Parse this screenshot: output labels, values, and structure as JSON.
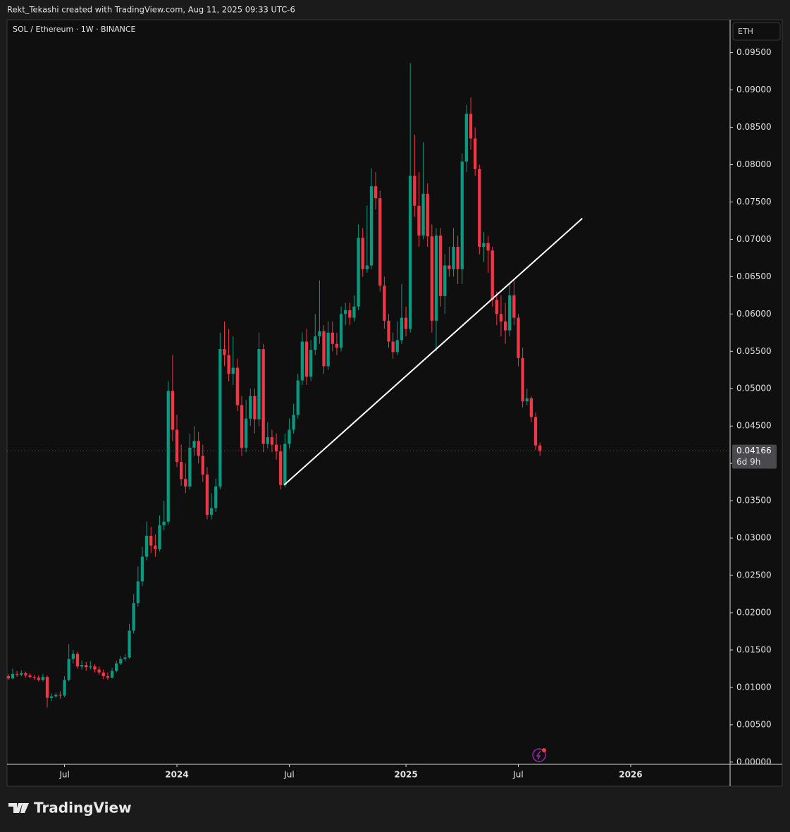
{
  "header": {
    "text": "Rekt_Tekashi created with TradingView.com, Aug 11, 2025 09:33 UTC-6"
  },
  "chart_data": {
    "type": "candlestick",
    "symbol": "SOL / Ethereum · 1W · BINANCE",
    "currency": "ETH",
    "colors": {
      "up": "#089981",
      "down": "#f23645"
    },
    "ohlc": [
      [
        0.0115,
        0.0118,
        0.011,
        0.0112
      ],
      [
        0.0112,
        0.0125,
        0.0111,
        0.0118
      ],
      [
        0.0118,
        0.0122,
        0.0114,
        0.0117
      ],
      [
        0.0117,
        0.0123,
        0.0115,
        0.0119
      ],
      [
        0.0119,
        0.0121,
        0.0113,
        0.0116
      ],
      [
        0.0116,
        0.0119,
        0.0112,
        0.0114
      ],
      [
        0.0114,
        0.0117,
        0.011,
        0.0113
      ],
      [
        0.0113,
        0.0116,
        0.0108,
        0.011
      ],
      [
        0.011,
        0.0118,
        0.0108,
        0.0114
      ],
      [
        0.0114,
        0.0116,
        0.0073,
        0.0086
      ],
      [
        0.0086,
        0.0092,
        0.0082,
        0.0088
      ],
      [
        0.0088,
        0.0093,
        0.0086,
        0.009
      ],
      [
        0.009,
        0.0095,
        0.0085,
        0.0089
      ],
      [
        0.0089,
        0.0115,
        0.0087,
        0.011
      ],
      [
        0.011,
        0.0158,
        0.0108,
        0.0138
      ],
      [
        0.0138,
        0.015,
        0.0132,
        0.0145
      ],
      [
        0.0145,
        0.0148,
        0.0125,
        0.0128
      ],
      [
        0.0128,
        0.0136,
        0.0124,
        0.013
      ],
      [
        0.013,
        0.0134,
        0.0122,
        0.0127
      ],
      [
        0.0127,
        0.0135,
        0.0124,
        0.0128
      ],
      [
        0.0128,
        0.0131,
        0.012,
        0.0124
      ],
      [
        0.0124,
        0.0128,
        0.0117,
        0.012
      ],
      [
        0.012,
        0.0124,
        0.0111,
        0.0115
      ],
      [
        0.0115,
        0.012,
        0.011,
        0.0113
      ],
      [
        0.0113,
        0.0126,
        0.0112,
        0.0122
      ],
      [
        0.0122,
        0.0136,
        0.012,
        0.0132
      ],
      [
        0.0132,
        0.0142,
        0.013,
        0.0138
      ],
      [
        0.0138,
        0.0145,
        0.0135,
        0.014
      ],
      [
        0.014,
        0.0185,
        0.0138,
        0.0176
      ],
      [
        0.0176,
        0.0225,
        0.0172,
        0.0213
      ],
      [
        0.0213,
        0.0262,
        0.0208,
        0.0242
      ],
      [
        0.0242,
        0.0288,
        0.0236,
        0.0275
      ],
      [
        0.0275,
        0.0322,
        0.027,
        0.0303
      ],
      [
        0.0303,
        0.0315,
        0.028,
        0.029
      ],
      [
        0.029,
        0.0305,
        0.0275,
        0.0285
      ],
      [
        0.0285,
        0.033,
        0.0282,
        0.0317
      ],
      [
        0.0317,
        0.035,
        0.031,
        0.0322
      ],
      [
        0.0322,
        0.051,
        0.0318,
        0.0497
      ],
      [
        0.0497,
        0.0545,
        0.043,
        0.0445
      ],
      [
        0.0445,
        0.0465,
        0.0395,
        0.0402
      ],
      [
        0.0402,
        0.0425,
        0.037,
        0.0379
      ],
      [
        0.0379,
        0.04,
        0.036,
        0.0369
      ],
      [
        0.0369,
        0.044,
        0.0365,
        0.0421
      ],
      [
        0.0421,
        0.045,
        0.041,
        0.043
      ],
      [
        0.043,
        0.0442,
        0.04,
        0.041
      ],
      [
        0.041,
        0.0425,
        0.0375,
        0.0385
      ],
      [
        0.0385,
        0.0395,
        0.0325,
        0.0331
      ],
      [
        0.0331,
        0.036,
        0.0325,
        0.034
      ],
      [
        0.034,
        0.038,
        0.0335,
        0.0369
      ],
      [
        0.0369,
        0.0575,
        0.0365,
        0.0553
      ],
      [
        0.0553,
        0.059,
        0.053,
        0.0545
      ],
      [
        0.0545,
        0.058,
        0.051,
        0.052
      ],
      [
        0.052,
        0.057,
        0.0505,
        0.0528
      ],
      [
        0.0528,
        0.054,
        0.047,
        0.0478
      ],
      [
        0.0478,
        0.049,
        0.041,
        0.0421
      ],
      [
        0.0421,
        0.0485,
        0.0415,
        0.046
      ],
      [
        0.046,
        0.05,
        0.045,
        0.049
      ],
      [
        0.049,
        0.05,
        0.044,
        0.0459
      ],
      [
        0.0459,
        0.0575,
        0.045,
        0.0553
      ],
      [
        0.0553,
        0.056,
        0.0415,
        0.0426
      ],
      [
        0.0426,
        0.0455,
        0.042,
        0.0435
      ],
      [
        0.0435,
        0.0445,
        0.0415,
        0.0425
      ],
      [
        0.0425,
        0.044,
        0.0405,
        0.0416
      ],
      [
        0.0416,
        0.0425,
        0.0365,
        0.0371
      ],
      [
        0.0371,
        0.044,
        0.0368,
        0.0426
      ],
      [
        0.0426,
        0.046,
        0.042,
        0.0445
      ],
      [
        0.0445,
        0.048,
        0.044,
        0.0465
      ],
      [
        0.0465,
        0.052,
        0.046,
        0.0511
      ],
      [
        0.0511,
        0.0575,
        0.0505,
        0.0563
      ],
      [
        0.0563,
        0.058,
        0.0505,
        0.0516
      ],
      [
        0.0516,
        0.0565,
        0.051,
        0.0552
      ],
      [
        0.0552,
        0.06,
        0.0545,
        0.057
      ],
      [
        0.057,
        0.0645,
        0.056,
        0.0577
      ],
      [
        0.0577,
        0.0585,
        0.052,
        0.053
      ],
      [
        0.053,
        0.059,
        0.0525,
        0.0575
      ],
      [
        0.0575,
        0.059,
        0.055,
        0.056
      ],
      [
        0.056,
        0.0575,
        0.0545,
        0.0555
      ],
      [
        0.0555,
        0.061,
        0.055,
        0.06
      ],
      [
        0.06,
        0.0615,
        0.0585,
        0.0605
      ],
      [
        0.0605,
        0.0615,
        0.0585,
        0.0595
      ],
      [
        0.0595,
        0.0625,
        0.059,
        0.061
      ],
      [
        0.061,
        0.072,
        0.0605,
        0.0702
      ],
      [
        0.0702,
        0.0715,
        0.065,
        0.066
      ],
      [
        0.066,
        0.0745,
        0.0655,
        0.0665
      ],
      [
        0.0665,
        0.0795,
        0.066,
        0.0771
      ],
      [
        0.0771,
        0.079,
        0.074,
        0.0755
      ],
      [
        0.0755,
        0.0765,
        0.063,
        0.0638
      ],
      [
        0.0638,
        0.065,
        0.058,
        0.0591
      ],
      [
        0.0591,
        0.06,
        0.0555,
        0.0563
      ],
      [
        0.0563,
        0.0575,
        0.054,
        0.0549
      ],
      [
        0.0549,
        0.059,
        0.0545,
        0.0565
      ],
      [
        0.0565,
        0.064,
        0.056,
        0.0595
      ],
      [
        0.0595,
        0.061,
        0.057,
        0.058
      ],
      [
        0.058,
        0.0936,
        0.0575,
        0.0785
      ],
      [
        0.0785,
        0.084,
        0.073,
        0.0745
      ],
      [
        0.0745,
        0.079,
        0.069,
        0.0705
      ],
      [
        0.0705,
        0.083,
        0.07,
        0.0761
      ],
      [
        0.0761,
        0.0775,
        0.069,
        0.0704
      ],
      [
        0.0704,
        0.072,
        0.0575,
        0.0591
      ],
      [
        0.0591,
        0.0715,
        0.055,
        0.0705
      ],
      [
        0.0705,
        0.0715,
        0.061,
        0.0624
      ],
      [
        0.0624,
        0.068,
        0.06,
        0.0665
      ],
      [
        0.0665,
        0.069,
        0.065,
        0.066
      ],
      [
        0.066,
        0.0715,
        0.065,
        0.069
      ],
      [
        0.069,
        0.0705,
        0.064,
        0.066
      ],
      [
        0.066,
        0.0815,
        0.064,
        0.0804
      ],
      [
        0.0804,
        0.088,
        0.079,
        0.0868
      ],
      [
        0.0868,
        0.089,
        0.082,
        0.0835
      ],
      [
        0.0835,
        0.085,
        0.0785,
        0.0794
      ],
      [
        0.0794,
        0.08,
        0.068,
        0.069
      ],
      [
        0.069,
        0.071,
        0.067,
        0.0695
      ],
      [
        0.0695,
        0.0705,
        0.0655,
        0.0685
      ],
      [
        0.0685,
        0.069,
        0.061,
        0.0619
      ],
      [
        0.0619,
        0.063,
        0.0585,
        0.06
      ],
      [
        0.06,
        0.0625,
        0.057,
        0.059
      ],
      [
        0.059,
        0.0615,
        0.056,
        0.0578
      ],
      [
        0.0578,
        0.064,
        0.057,
        0.0625
      ],
      [
        0.0625,
        0.0645,
        0.0585,
        0.0595
      ],
      [
        0.0595,
        0.06,
        0.053,
        0.0541
      ],
      [
        0.0541,
        0.0555,
        0.0475,
        0.0483
      ],
      [
        0.0483,
        0.05,
        0.0478,
        0.0487
      ],
      [
        0.0487,
        0.049,
        0.0455,
        0.0462
      ],
      [
        0.0462,
        0.0468,
        0.0418,
        0.0424
      ],
      [
        0.0424,
        0.0428,
        0.041,
        0.04166
      ]
    ],
    "trendline": {
      "start": [
        63.8,
        0.0371
      ],
      "end": [
        132.8,
        0.0728
      ],
      "color": "#ffffff"
    },
    "last_price": 0.04166,
    "countdown": "6d 9h",
    "xlim": [
      -0.3,
      167
    ],
    "xticks": [
      {
        "value": 13,
        "label": "Jul"
      },
      {
        "value": 39,
        "label": "2024"
      },
      {
        "value": 65,
        "label": "Jul"
      },
      {
        "value": 92,
        "label": "2025"
      },
      {
        "value": 118,
        "label": "Jul"
      },
      {
        "value": 144,
        "label": "2026"
      }
    ],
    "ylim": [
      -0.0003,
      0.0994
    ],
    "yticks": [
      {
        "value": 0,
        "label": "0.00000"
      },
      {
        "value": 0.005,
        "label": "0.00500"
      },
      {
        "value": 0.01,
        "label": "0.01000"
      },
      {
        "value": 0.015,
        "label": "0.01500"
      },
      {
        "value": 0.02,
        "label": "0.02000"
      },
      {
        "value": 0.025,
        "label": "0.02500"
      },
      {
        "value": 0.03,
        "label": "0.03000"
      },
      {
        "value": 0.035,
        "label": "0.03500"
      },
      {
        "value": 0.04,
        "label": "0.04000"
      },
      {
        "value": 0.045,
        "label": "0.04500"
      },
      {
        "value": 0.05,
        "label": "0.05000"
      },
      {
        "value": 0.055,
        "label": "0.05500"
      },
      {
        "value": 0.06,
        "label": "0.06000"
      },
      {
        "value": 0.065,
        "label": "0.06500"
      },
      {
        "value": 0.07,
        "label": "0.07000"
      },
      {
        "value": 0.075,
        "label": "0.07500"
      },
      {
        "value": 0.08,
        "label": "0.08000"
      },
      {
        "value": 0.085,
        "label": "0.08500"
      },
      {
        "value": 0.09,
        "label": "0.09000"
      },
      {
        "value": 0.095,
        "label": "0.09500"
      }
    ],
    "grid": false
  },
  "footer": {
    "brand": "TradingView"
  }
}
